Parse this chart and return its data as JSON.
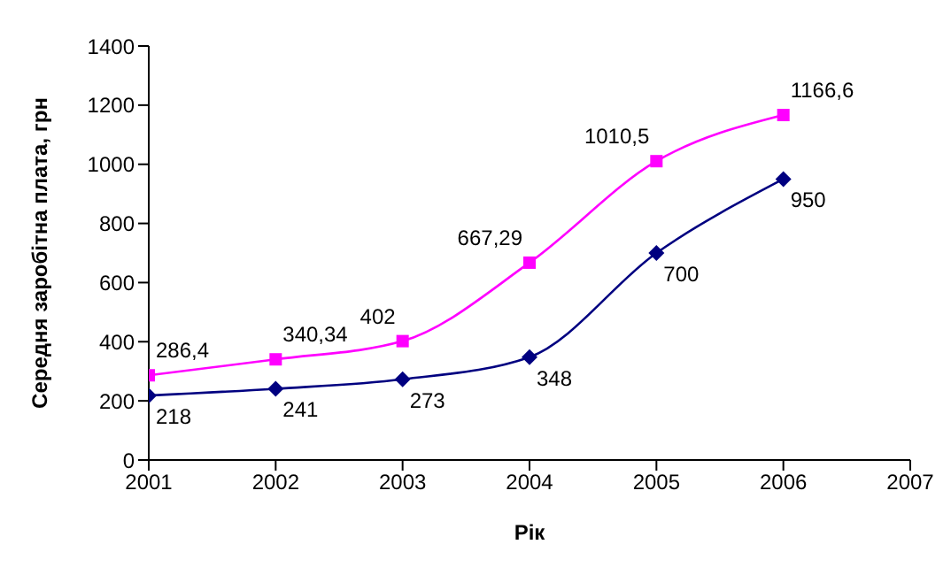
{
  "chart_data": {
    "type": "line",
    "xlabel": "Рік",
    "ylabel": "Середня заробітна плата, грн",
    "x": [
      2001,
      2002,
      2003,
      2004,
      2005,
      2006
    ],
    "xlim": [
      2001,
      2007
    ],
    "xticks": [
      2001,
      2002,
      2003,
      2004,
      2005,
      2006,
      2007
    ],
    "ylim": [
      0,
      1400
    ],
    "yticks": [
      0,
      200,
      400,
      600,
      800,
      1000,
      1200,
      1400
    ],
    "grid": false,
    "legend": false,
    "series": [
      {
        "color": "#ff00ff",
        "marker": "square",
        "values": [
          286.4,
          340.34,
          402,
          667.29,
          1010.5,
          1166.6
        ],
        "value_labels": [
          "286,4",
          "340,34",
          "402",
          "667,29",
          "1010,5",
          "1166,6"
        ]
      },
      {
        "color": "#000080",
        "marker": "diamond",
        "values": [
          218,
          241,
          273,
          348,
          700,
          950
        ],
        "value_labels": [
          "218",
          "241",
          "273",
          "348",
          "700",
          "950"
        ]
      }
    ]
  }
}
